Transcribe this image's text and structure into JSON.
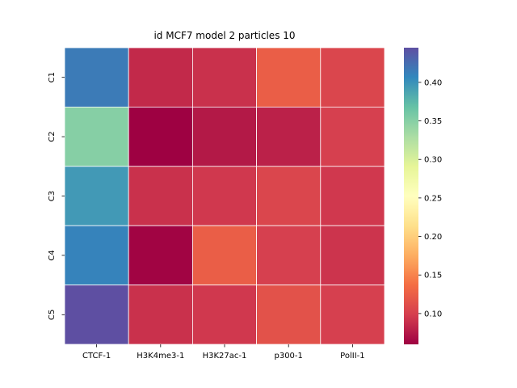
{
  "chart_data": {
    "type": "heatmap",
    "title": "id MCF7 model 2 particles 10",
    "xlabel": "",
    "ylabel": "",
    "x_categories": [
      "CTCF-1",
      "H3K4me3-1",
      "H3K27ac-1",
      "p300-1",
      "PolII-1"
    ],
    "y_categories": [
      "C1",
      "C2",
      "C3",
      "C4",
      "C5"
    ],
    "values": [
      [
        0.415,
        0.085,
        0.09,
        0.125,
        0.105
      ],
      [
        0.35,
        0.06,
        0.075,
        0.08,
        0.1
      ],
      [
        0.395,
        0.09,
        0.095,
        0.105,
        0.095
      ],
      [
        0.41,
        0.062,
        0.125,
        0.1,
        0.092
      ],
      [
        0.445,
        0.09,
        0.095,
        0.115,
        0.1
      ]
    ],
    "colormap": "Spectral",
    "colorbar": {
      "vmin": 0.06,
      "vmax": 0.445,
      "ticks": [
        0.1,
        0.15,
        0.2,
        0.25,
        0.3,
        0.35,
        0.4
      ],
      "tick_labels": [
        "0.10",
        "0.15",
        "0.20",
        "0.25",
        "0.30",
        "0.35",
        "0.40"
      ]
    },
    "grid": true,
    "colorbar_placement": "right"
  }
}
